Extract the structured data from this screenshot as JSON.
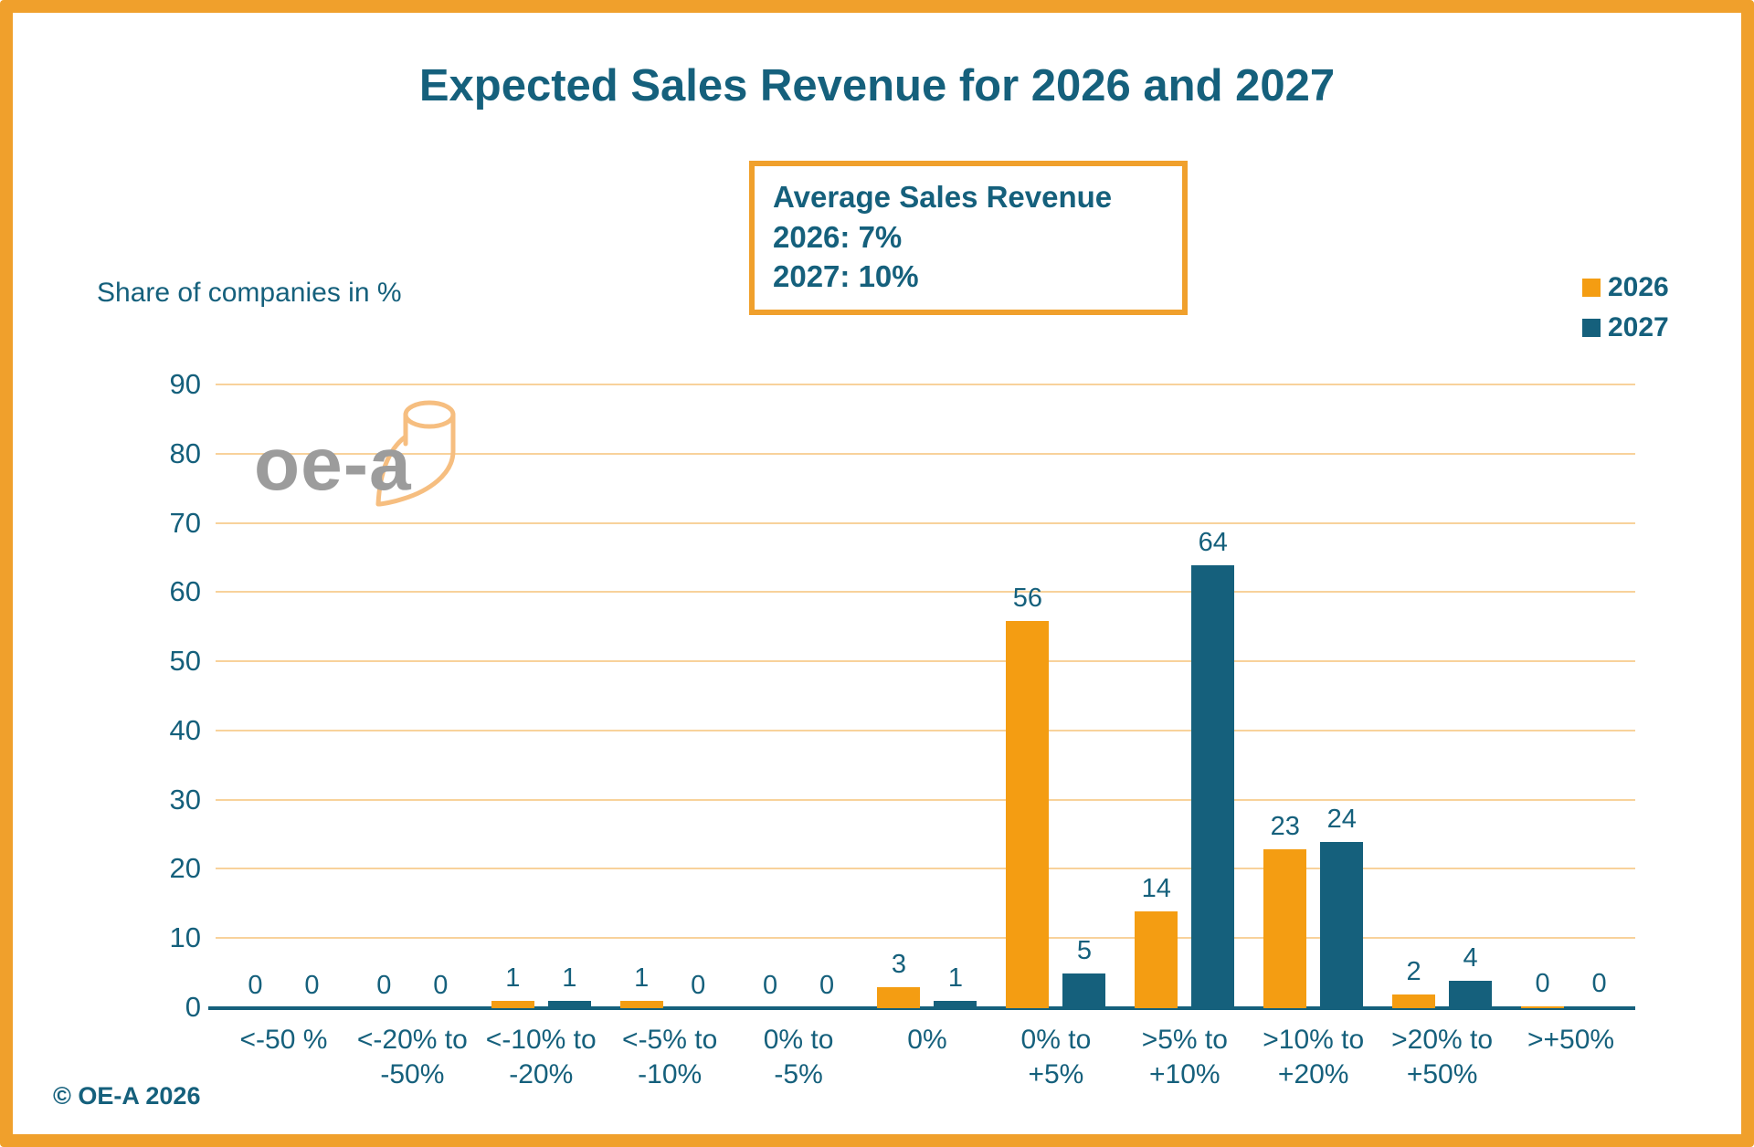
{
  "average_box": {
    "line1": "Average Sales Revenue",
    "line2": "2026: 7%",
    "line3": "2027: 10%"
  },
  "footer": {
    "copyright": "© OE-A 2026"
  },
  "logo": {
    "text": "oe-a"
  },
  "colors": {
    "orange": "#F49D12",
    "teal": "#15607C",
    "gridline": "#F8D29B",
    "border": "#F0A02C",
    "logo_gray": "#9C9C9C",
    "logo_orange": "#F6BE80"
  },
  "chart_data": {
    "type": "bar",
    "title": "Expected Sales Revenue for 2026 and 2027",
    "ylabel": "Share of companies in %",
    "xlabel": "",
    "ylim": [
      0,
      90
    ],
    "yticks": [
      0,
      10,
      20,
      30,
      40,
      50,
      60,
      70,
      80,
      90
    ],
    "grid": true,
    "legend_position": "top-right",
    "categories": [
      "<-50 %",
      "<-20% to -50%",
      "<-10% to -20%",
      "<-5% to -10%",
      "0% to -5%",
      "0%",
      "0% to +5%",
      ">5% to +10%",
      ">10% to +20%",
      ">20% to +50%",
      ">+50%"
    ],
    "category_lines": [
      [
        "<-50 %"
      ],
      [
        "<-20% to",
        "-50%"
      ],
      [
        "<-10% to",
        "-20%"
      ],
      [
        "<-5% to",
        "-10%"
      ],
      [
        "0% to",
        "-5%"
      ],
      [
        "0%"
      ],
      [
        "0% to",
        "+5%"
      ],
      [
        ">5% to",
        "+10%"
      ],
      [
        ">10% to",
        "+20%"
      ],
      [
        ">20% to",
        "+50%"
      ],
      [
        ">+50%"
      ]
    ],
    "series": [
      {
        "name": "2026",
        "color": "#F49D12",
        "values": [
          0,
          0,
          1,
          1,
          0,
          3,
          56,
          14,
          23,
          2,
          0
        ]
      },
      {
        "name": "2027",
        "color": "#15607C",
        "values": [
          0,
          0,
          1,
          0,
          0,
          1,
          5,
          64,
          24,
          4,
          0
        ]
      }
    ]
  }
}
